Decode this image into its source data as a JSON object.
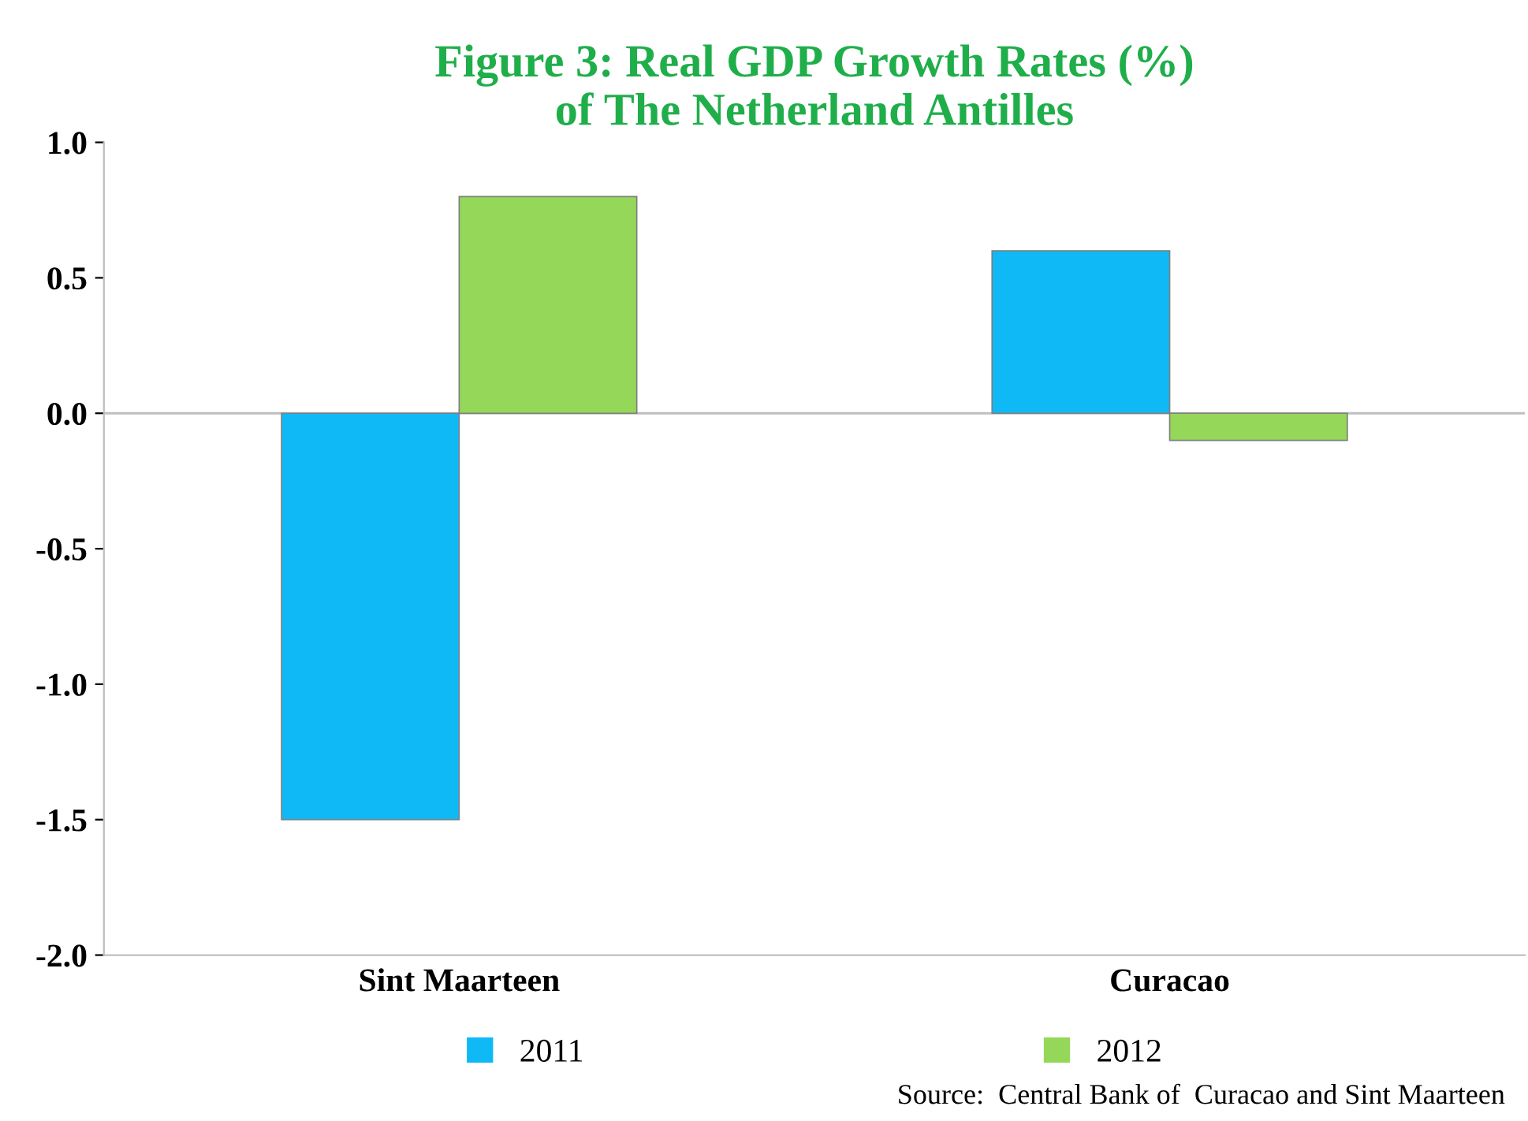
{
  "chart_data": {
    "type": "bar",
    "title": "Figure 3: Real GDP Growth Rates (%)\nof The Netherland Antilles",
    "categories": [
      "Sint Maarteen",
      "Curacao"
    ],
    "series": [
      {
        "name": "2011",
        "color": "#0fb9f5",
        "values": [
          -1.5,
          0.6
        ]
      },
      {
        "name": "2012",
        "color": "#95d759",
        "values": [
          0.8,
          -0.1
        ]
      }
    ],
    "ylim": [
      -2,
      1
    ],
    "yticks": [
      {
        "value": -2,
        "label": "-2.0"
      },
      {
        "value": -1.5,
        "label": "-1.5"
      },
      {
        "value": -1,
        "label": "-1.0"
      },
      {
        "value": -0.5,
        "label": "-0.5"
      },
      {
        "value": 0,
        "label": "0.0"
      },
      {
        "value": 0.5,
        "label": "0.5"
      },
      {
        "value": 1,
        "label": "1.0"
      }
    ],
    "ref_lines": [
      {
        "axis": "y",
        "value": 0,
        "color": "#bfbfbf"
      }
    ],
    "grid": false,
    "legend": "bottom",
    "annotations": [
      "Source:  Central Bank of  Curacao and Sint Maarteen"
    ]
  }
}
